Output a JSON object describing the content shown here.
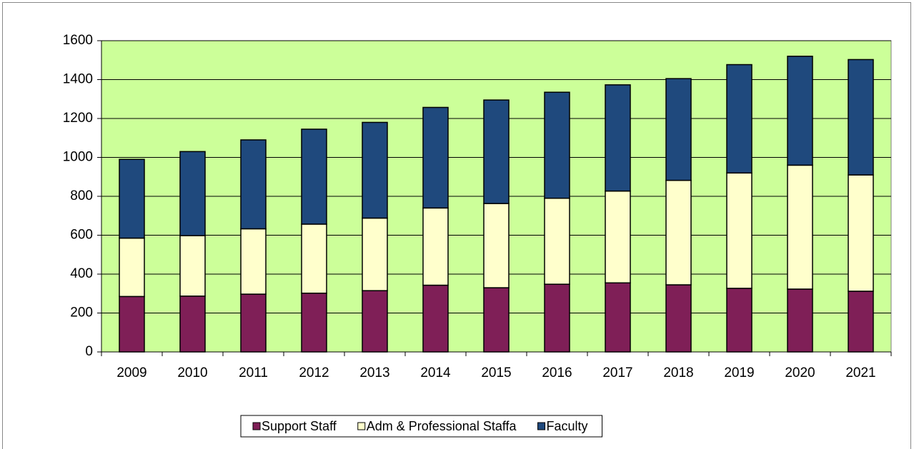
{
  "chart_data": {
    "type": "stacked_bar",
    "categories": [
      "2009",
      "2010",
      "2011",
      "2012",
      "2013",
      "2014",
      "2015",
      "2016",
      "2017",
      "2018",
      "2019",
      "2020",
      "2021"
    ],
    "series": [
      {
        "name": "Support Staff",
        "color": "#7f1f57",
        "values": [
          285,
          287,
          297,
          302,
          315,
          343,
          330,
          348,
          355,
          345,
          327,
          323,
          312
        ]
      },
      {
        "name": "Adm & Professional Staffa",
        "color": "#ffffcc",
        "values": [
          300,
          311,
          336,
          355,
          373,
          397,
          433,
          442,
          472,
          537,
          593,
          637,
          598
        ]
      },
      {
        "name": "Faculty",
        "color": "#1f497d",
        "values": [
          405,
          432,
          457,
          488,
          492,
          517,
          532,
          545,
          546,
          523,
          557,
          560,
          593
        ]
      }
    ],
    "ylim": [
      0,
      1600
    ],
    "yticks": [
      0,
      200,
      400,
      600,
      800,
      1000,
      1200,
      1400,
      1600
    ],
    "grid": true,
    "plot_background": "#ccff99",
    "legend": "bottom"
  }
}
